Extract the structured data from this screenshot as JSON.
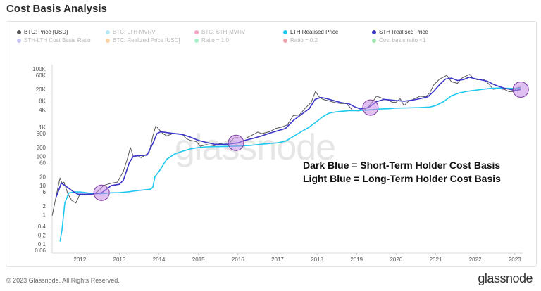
{
  "header": {
    "title": "Cost Basis Analysis"
  },
  "legend": [
    {
      "label": "BTC: Price [USD]",
      "color": "#555555",
      "active": true
    },
    {
      "label": "BTC: LTH-MVRV",
      "color": "#5bc8e8",
      "active": false
    },
    {
      "label": "BTC: STH-MVRV",
      "color": "#e0337d",
      "active": false
    },
    {
      "label": "LTH Realised Price",
      "color": "#1ec8f0",
      "active": true
    },
    {
      "label": "STH Realised Price",
      "color": "#3b35c8",
      "active": true
    },
    {
      "label": "STH-LTH Cost Basis Ratio",
      "color": "#7f7ae0",
      "active": false
    },
    {
      "label": "BTC: Realized Price [USD]",
      "color": "#f39c2f",
      "active": false
    },
    {
      "label": "Ratio = 1.0",
      "color": "#3fdc8a",
      "active": false
    },
    {
      "label": "Ratio = 0.2",
      "color": "#e0334a",
      "active": false
    },
    {
      "label": "Cost basis ratio <1",
      "color": "#22c44a",
      "active": false
    }
  ],
  "annotation": {
    "line1": "Dark Blue = Short-Term Holder Cost Basis",
    "line2": "Light Blue = Long-Term Holder Cost Basis"
  },
  "watermark": "glassnode",
  "footer": {
    "copyright": "© 2023 Glassnode. All Rights Reserved.",
    "brand": "glassnode"
  },
  "chart_data": {
    "type": "line",
    "yscale": "log",
    "ylim": [
      0.06,
      100000
    ],
    "xlim": [
      2011.3,
      2023.2
    ],
    "y_ticks": [
      0.06,
      0.1,
      0.2,
      0.4,
      1,
      2,
      6,
      10,
      20,
      60,
      100,
      200,
      600,
      "1K",
      "4K",
      "8K",
      "20K",
      "60K",
      "100K"
    ],
    "y_tick_values": [
      0.06,
      0.1,
      0.2,
      0.4,
      1,
      2,
      6,
      10,
      20,
      60,
      100,
      200,
      600,
      1000,
      4000,
      8000,
      20000,
      60000,
      100000
    ],
    "x_ticks": [
      "2012",
      "2013",
      "2014",
      "2015",
      "2016",
      "2017",
      "2018",
      "2019",
      "2020",
      "2021",
      "2022",
      "2023"
    ],
    "x_tick_values": [
      2012,
      2013,
      2014,
      2015,
      2016,
      2017,
      2018,
      2019,
      2020,
      2021,
      2022,
      2023
    ],
    "series": [
      {
        "name": "BTC: Price [USD]",
        "color": "#555555",
        "points": [
          [
            2011.3,
            0.9
          ],
          [
            2011.45,
            9
          ],
          [
            2011.5,
            18
          ],
          [
            2011.55,
            12
          ],
          [
            2011.6,
            13
          ],
          [
            2011.7,
            5
          ],
          [
            2011.8,
            3
          ],
          [
            2011.9,
            2.5
          ],
          [
            2011.95,
            3.5
          ],
          [
            2012.0,
            5
          ],
          [
            2012.1,
            5
          ],
          [
            2012.2,
            5
          ],
          [
            2012.35,
            5.1
          ],
          [
            2012.5,
            7
          ],
          [
            2012.6,
            10
          ],
          [
            2012.7,
            11
          ],
          [
            2012.8,
            12
          ],
          [
            2012.95,
            13
          ],
          [
            2013.1,
            30
          ],
          [
            2013.2,
            80
          ],
          [
            2013.28,
            200
          ],
          [
            2013.35,
            100
          ],
          [
            2013.45,
            110
          ],
          [
            2013.55,
            90
          ],
          [
            2013.65,
            110
          ],
          [
            2013.75,
            130
          ],
          [
            2013.85,
            500
          ],
          [
            2013.92,
            1100
          ],
          [
            2014.0,
            850
          ],
          [
            2014.1,
            600
          ],
          [
            2014.2,
            500
          ],
          [
            2014.35,
            600
          ],
          [
            2014.5,
            600
          ],
          [
            2014.6,
            550
          ],
          [
            2014.7,
            400
          ],
          [
            2014.8,
            350
          ],
          [
            2014.95,
            320
          ],
          [
            2015.05,
            220
          ],
          [
            2015.2,
            250
          ],
          [
            2015.4,
            230
          ],
          [
            2015.55,
            280
          ],
          [
            2015.7,
            240
          ],
          [
            2015.8,
            300
          ],
          [
            2015.9,
            430
          ],
          [
            2016.0,
            430
          ],
          [
            2016.2,
            420
          ],
          [
            2016.4,
            570
          ],
          [
            2016.5,
            680
          ],
          [
            2016.6,
            600
          ],
          [
            2016.8,
            700
          ],
          [
            2016.95,
            900
          ],
          [
            2017.1,
            1000
          ],
          [
            2017.25,
            1200
          ],
          [
            2017.4,
            2500
          ],
          [
            2017.55,
            2600
          ],
          [
            2017.7,
            4500
          ],
          [
            2017.85,
            7000
          ],
          [
            2017.96,
            17000
          ],
          [
            2018.05,
            11000
          ],
          [
            2018.15,
            9000
          ],
          [
            2018.3,
            8000
          ],
          [
            2018.45,
            7000
          ],
          [
            2018.6,
            6500
          ],
          [
            2018.75,
            6400
          ],
          [
            2018.9,
            3800
          ],
          [
            2019.05,
            3600
          ],
          [
            2019.2,
            4000
          ],
          [
            2019.3,
            5000
          ],
          [
            2019.45,
            9000
          ],
          [
            2019.5,
            11500
          ],
          [
            2019.6,
            10500
          ],
          [
            2019.7,
            9000
          ],
          [
            2019.8,
            8500
          ],
          [
            2019.9,
            7200
          ],
          [
            2020.0,
            7200
          ],
          [
            2020.1,
            9500
          ],
          [
            2020.2,
            5500
          ],
          [
            2020.3,
            7500
          ],
          [
            2020.45,
            9300
          ],
          [
            2020.6,
            11500
          ],
          [
            2020.75,
            11000
          ],
          [
            2020.85,
            15000
          ],
          [
            2020.95,
            28000
          ],
          [
            2021.1,
            45000
          ],
          [
            2021.28,
            60000
          ],
          [
            2021.4,
            36000
          ],
          [
            2021.55,
            32000
          ],
          [
            2021.65,
            47000
          ],
          [
            2021.8,
            60000
          ],
          [
            2021.86,
            65000
          ],
          [
            2021.95,
            48000
          ],
          [
            2022.05,
            42000
          ],
          [
            2022.2,
            45000
          ],
          [
            2022.35,
            30000
          ],
          [
            2022.45,
            20000
          ],
          [
            2022.6,
            21000
          ],
          [
            2022.75,
            19500
          ],
          [
            2022.85,
            16500
          ],
          [
            2022.97,
            16600
          ],
          [
            2023.05,
            22000
          ],
          [
            2023.15,
            24000
          ]
        ]
      },
      {
        "name": "LTH Realised Price",
        "color": "#1ec8f0",
        "points": [
          [
            2011.5,
            0.12
          ],
          [
            2011.55,
            0.3
          ],
          [
            2011.62,
            2.5
          ],
          [
            2011.72,
            5.5
          ],
          [
            2011.85,
            6
          ],
          [
            2012.0,
            6
          ],
          [
            2012.2,
            5.5
          ],
          [
            2012.4,
            5.2
          ],
          [
            2012.6,
            5.3
          ],
          [
            2012.8,
            5.6
          ],
          [
            2013.0,
            5.7
          ],
          [
            2013.2,
            6
          ],
          [
            2013.4,
            6.5
          ],
          [
            2013.6,
            7
          ],
          [
            2013.8,
            7.5
          ],
          [
            2013.85,
            9
          ],
          [
            2013.9,
            20
          ],
          [
            2014.0,
            30
          ],
          [
            2014.2,
            80
          ],
          [
            2014.4,
            120
          ],
          [
            2014.6,
            150
          ],
          [
            2014.8,
            180
          ],
          [
            2015.0,
            200
          ],
          [
            2015.2,
            210
          ],
          [
            2015.5,
            215
          ],
          [
            2015.8,
            220
          ],
          [
            2016.0,
            225
          ],
          [
            2016.3,
            235
          ],
          [
            2016.6,
            260
          ],
          [
            2016.8,
            275
          ],
          [
            2017.0,
            290
          ],
          [
            2017.2,
            330
          ],
          [
            2017.4,
            480
          ],
          [
            2017.6,
            700
          ],
          [
            2017.8,
            1000
          ],
          [
            2018.0,
            1600
          ],
          [
            2018.15,
            2300
          ],
          [
            2018.3,
            3000
          ],
          [
            2018.45,
            3300
          ],
          [
            2018.6,
            3500
          ],
          [
            2018.8,
            3700
          ],
          [
            2019.0,
            3700
          ],
          [
            2019.2,
            3800
          ],
          [
            2019.4,
            4000
          ],
          [
            2019.6,
            4200
          ],
          [
            2019.8,
            4300
          ],
          [
            2020.0,
            4500
          ],
          [
            2020.3,
            4600
          ],
          [
            2020.6,
            4700
          ],
          [
            2020.85,
            4900
          ],
          [
            2021.0,
            5500
          ],
          [
            2021.2,
            7500
          ],
          [
            2021.4,
            12000
          ],
          [
            2021.6,
            15000
          ],
          [
            2021.8,
            17000
          ],
          [
            2022.0,
            18500
          ],
          [
            2022.2,
            20000
          ],
          [
            2022.4,
            21500
          ],
          [
            2022.6,
            22000
          ],
          [
            2022.8,
            21500
          ],
          [
            2023.0,
            21000
          ],
          [
            2023.15,
            21500
          ]
        ]
      },
      {
        "name": "STH Realised Price",
        "color": "#3b35c8",
        "points": [
          [
            2011.4,
            4
          ],
          [
            2011.47,
            7
          ],
          [
            2011.53,
            12
          ],
          [
            2011.62,
            10
          ],
          [
            2011.72,
            8
          ],
          [
            2011.85,
            6
          ],
          [
            2011.95,
            5
          ],
          [
            2012.1,
            5
          ],
          [
            2012.3,
            5
          ],
          [
            2012.55,
            5.6
          ],
          [
            2012.8,
            10
          ],
          [
            2013.0,
            11
          ],
          [
            2013.1,
            15
          ],
          [
            2013.25,
            60
          ],
          [
            2013.35,
            100
          ],
          [
            2013.5,
            105
          ],
          [
            2013.7,
            110
          ],
          [
            2013.85,
            280
          ],
          [
            2013.95,
            600
          ],
          [
            2014.05,
            700
          ],
          [
            2014.2,
            650
          ],
          [
            2014.4,
            600
          ],
          [
            2014.6,
            560
          ],
          [
            2014.8,
            450
          ],
          [
            2015.0,
            350
          ],
          [
            2015.2,
            300
          ],
          [
            2015.4,
            260
          ],
          [
            2015.6,
            255
          ],
          [
            2015.8,
            265
          ],
          [
            2016.0,
            290
          ],
          [
            2016.2,
            360
          ],
          [
            2016.4,
            420
          ],
          [
            2016.6,
            500
          ],
          [
            2016.8,
            620
          ],
          [
            2017.0,
            750
          ],
          [
            2017.2,
            900
          ],
          [
            2017.4,
            1700
          ],
          [
            2017.6,
            2700
          ],
          [
            2017.8,
            4300
          ],
          [
            2017.95,
            9000
          ],
          [
            2018.1,
            10500
          ],
          [
            2018.25,
            9500
          ],
          [
            2018.4,
            8300
          ],
          [
            2018.6,
            7000
          ],
          [
            2018.8,
            6400
          ],
          [
            2018.95,
            5000
          ],
          [
            2019.1,
            4200
          ],
          [
            2019.3,
            4700
          ],
          [
            2019.5,
            7500
          ],
          [
            2019.7,
            9000
          ],
          [
            2019.85,
            8600
          ],
          [
            2020.0,
            8200
          ],
          [
            2020.2,
            7800
          ],
          [
            2020.4,
            8400
          ],
          [
            2020.6,
            9500
          ],
          [
            2020.8,
            11000
          ],
          [
            2020.95,
            17000
          ],
          [
            2021.1,
            29000
          ],
          [
            2021.25,
            45000
          ],
          [
            2021.4,
            48000
          ],
          [
            2021.55,
            40000
          ],
          [
            2021.7,
            43000
          ],
          [
            2021.85,
            52000
          ],
          [
            2022.0,
            46000
          ],
          [
            2022.15,
            42000
          ],
          [
            2022.3,
            38000
          ],
          [
            2022.45,
            30000
          ],
          [
            2022.6,
            25000
          ],
          [
            2022.75,
            21500
          ],
          [
            2022.9,
            19500
          ],
          [
            2023.0,
            18000
          ],
          [
            2023.15,
            19500
          ]
        ]
      }
    ],
    "highlights": [
      {
        "x": 2012.55,
        "y": 5.6
      },
      {
        "x": 2015.95,
        "y": 290
      },
      {
        "x": 2019.35,
        "y": 4700
      },
      {
        "x": 2023.15,
        "y": 19500
      }
    ]
  }
}
